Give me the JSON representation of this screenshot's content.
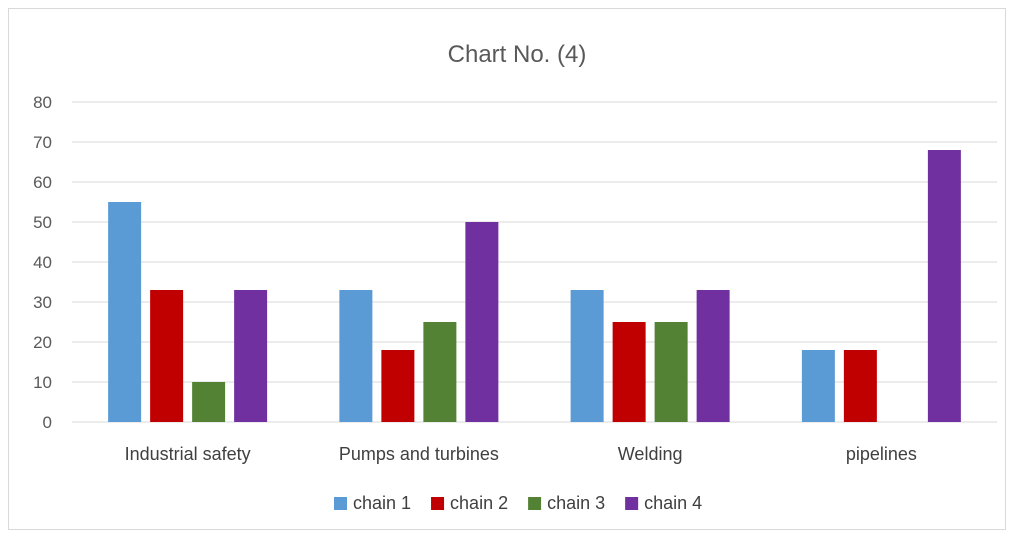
{
  "chart_data": {
    "type": "bar",
    "title": "Chart No. (4)",
    "xlabel": "",
    "ylabel": "",
    "categories": [
      "Industrial safety",
      "Pumps and turbines",
      "Welding",
      "pipelines"
    ],
    "ylim": [
      0,
      80
    ],
    "yticks": [
      0,
      10,
      20,
      30,
      40,
      50,
      60,
      70,
      80
    ],
    "grid": true,
    "legend": "bottom",
    "series": [
      {
        "name": "chain 1",
        "color": "#5b9bd5",
        "values": [
          55,
          33,
          33,
          18
        ]
      },
      {
        "name": "chain 2",
        "color": "#c00000",
        "values": [
          33,
          18,
          25,
          18
        ]
      },
      {
        "name": "chain 3",
        "color": "#548235",
        "values": [
          10,
          25,
          25,
          0
        ]
      },
      {
        "name": "chain 4",
        "color": "#7030a0",
        "values": [
          33,
          50,
          33,
          68
        ]
      }
    ]
  }
}
